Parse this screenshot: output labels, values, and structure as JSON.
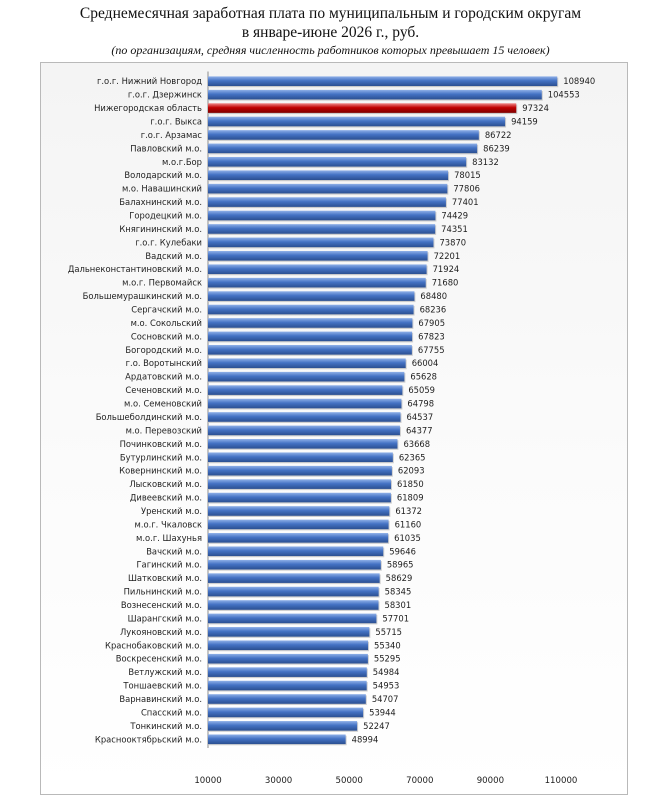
{
  "header": {
    "title_line1": "Среднемесячная заработная плата по муниципальным и городским округам",
    "title_line2": "в январе-июне 2026 г., руб.",
    "subtitle": "(по организациям, средняя численность работников которых превышает 15 человек)"
  },
  "colors": {
    "bar": "#4472c4",
    "highlight": "#c00000",
    "frame": "#b9b9b9"
  },
  "chart_data": {
    "type": "bar",
    "orientation": "horizontal",
    "title": "Среднемесячная заработная плата по муниципальным и городским округам в январе-июне 2026 г., руб.",
    "subtitle": "(по организациям, средняя численность работников которых превышает 15 человек)",
    "xlim": [
      10000,
      110000
    ],
    "xticks": [
      "10000",
      "30000",
      "50000",
      "70000",
      "90000",
      "110000"
    ],
    "grid": false,
    "highlight_category": "Нижегородская область",
    "categories": [
      "г.о.г. Нижний Новгород",
      "г.о.г. Дзержинск",
      "Нижегородская область",
      "г.о.г. Выкса",
      "г.о.г. Арзамас",
      "Павловский м.о.",
      "м.о.г.Бор",
      "Володарский м.о.",
      "м.о. Навашинский",
      "Балахнинский м.о.",
      "Городецкий м.о.",
      "Княгининский м.о.",
      "г.о.г. Кулебаки",
      "Вадский м.о.",
      "Дальнеконстантиновский м.о.",
      "м.о.г. Первомайск",
      "Большемурашкинский м.о.",
      "Сергачский м.о.",
      "м.о. Сокольский",
      "Сосновский м.о.",
      "Богородский м.о.",
      "г.о. Воротынский",
      "Ардатовский м.о.",
      "Сеченовский м.о.",
      "м.о. Семеновский",
      "Большеболдинский м.о.",
      "м.о. Перевозский",
      "Починковский м.о.",
      "Бутурлинский м.о.",
      "Ковернинский м.о.",
      "Лысковский м.о.",
      "Дивеевский м.о.",
      "Уренский м.о.",
      "м.о.г. Чкаловск",
      "м.о.г. Шахунья",
      "Вачский м.о.",
      "Гагинский м.о.",
      "Шатковский м.о.",
      "Пильнинский м.о.",
      "Вознесенский м.о.",
      "Шарангский м.о.",
      "Лукояновский м.о.",
      "Краснобаковский м.о.",
      "Воскресенский м.о.",
      "Ветлужский м.о.",
      "Тоншаевский м.о.",
      "Варнавинский м.о.",
      "Спасский м.о.",
      "Тонкинский м.о.",
      "Краснооктябрьский м.о."
    ],
    "values": [
      108940,
      104553,
      97324,
      94159,
      86722,
      86239,
      83132,
      78015,
      77806,
      77401,
      74429,
      74351,
      73870,
      72201,
      71924,
      71680,
      68480,
      68236,
      67905,
      67823,
      67755,
      66004,
      65628,
      65059,
      64798,
      64537,
      64377,
      63668,
      62365,
      62093,
      61850,
      61809,
      61372,
      61160,
      61035,
      59646,
      58965,
      58629,
      58345,
      58301,
      57701,
      55715,
      55340,
      55295,
      54984,
      54953,
      54707,
      53944,
      52247,
      48994
    ]
  }
}
